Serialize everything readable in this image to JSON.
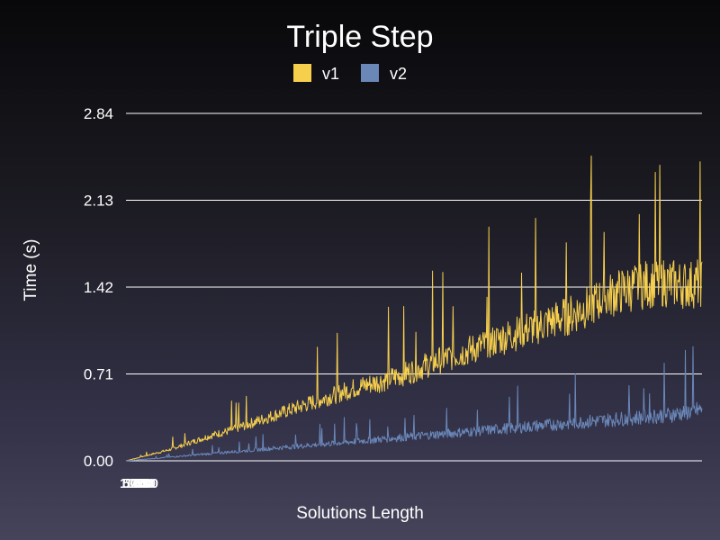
{
  "chart_data": {
    "type": "line",
    "title": "Triple Step",
    "xlabel": "Solutions Length",
    "ylabel": "Time (s)",
    "ylim": [
      0,
      2.84
    ],
    "yticks": [
      "0.00",
      "0.71",
      "1.42",
      "2.13",
      "2.84"
    ],
    "xlim": [
      0,
      1000
    ],
    "grid": "horizontal",
    "legend": "top-center",
    "series": [
      {
        "name": "v1",
        "color": "#f6cf4d",
        "x": [
          0,
          25,
          50,
          75,
          100,
          125,
          150,
          175,
          200,
          225,
          250,
          275,
          300,
          325,
          350,
          375,
          400,
          425,
          450,
          475,
          500,
          525,
          550,
          575,
          600,
          625,
          650,
          675,
          700,
          725,
          750,
          775,
          800,
          825,
          850,
          875,
          900,
          925,
          950,
          975,
          1000
        ],
        "values": [
          0.0,
          0.03,
          0.06,
          0.09,
          0.13,
          0.17,
          0.21,
          0.24,
          0.28,
          0.32,
          0.36,
          0.4,
          0.44,
          0.48,
          0.52,
          0.56,
          0.6,
          0.63,
          0.66,
          0.7,
          0.74,
          0.79,
          0.83,
          0.87,
          0.91,
          0.95,
          1.0,
          1.04,
          1.08,
          1.12,
          1.16,
          1.2,
          1.26,
          1.32,
          1.37,
          1.41,
          1.44,
          1.46,
          1.45,
          1.44,
          1.46
        ]
      },
      {
        "name": "v2",
        "color": "#6a87b8",
        "x": [
          0,
          25,
          50,
          75,
          100,
          125,
          150,
          175,
          200,
          225,
          250,
          275,
          300,
          325,
          350,
          375,
          400,
          425,
          450,
          475,
          500,
          525,
          550,
          575,
          600,
          625,
          650,
          675,
          700,
          725,
          750,
          775,
          800,
          825,
          850,
          875,
          900,
          925,
          950,
          975,
          1000
        ],
        "values": [
          0.0,
          0.01,
          0.02,
          0.03,
          0.04,
          0.05,
          0.06,
          0.07,
          0.08,
          0.09,
          0.1,
          0.11,
          0.12,
          0.13,
          0.14,
          0.15,
          0.16,
          0.17,
          0.18,
          0.19,
          0.2,
          0.21,
          0.22,
          0.23,
          0.24,
          0.25,
          0.26,
          0.27,
          0.28,
          0.29,
          0.3,
          0.31,
          0.32,
          0.33,
          0.34,
          0.35,
          0.36,
          0.37,
          0.38,
          0.4,
          0.42
        ]
      }
    ],
    "xticks": [
      "1",
      "50",
      "100",
      "150",
      "200",
      "250",
      "300"
    ]
  }
}
